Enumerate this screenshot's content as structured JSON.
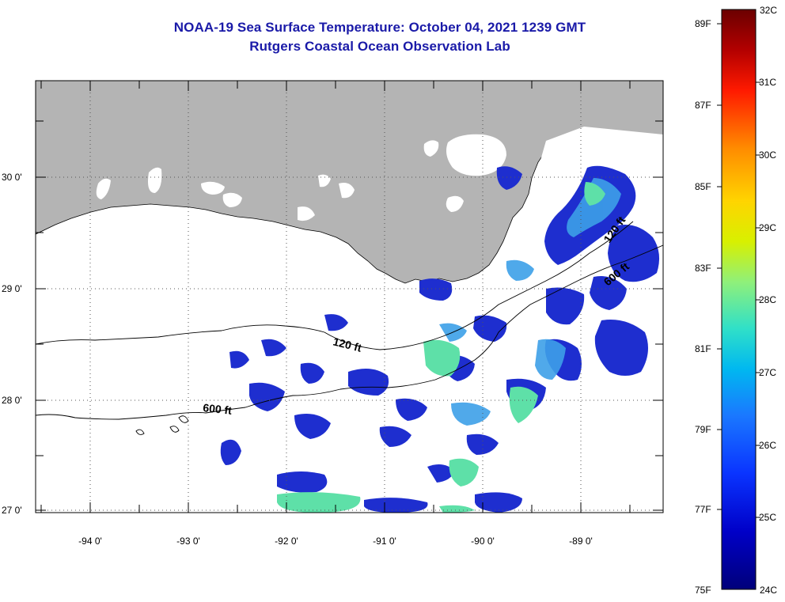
{
  "title": "NOAA-19 Sea Surface Temperature:  October 04, 2021 1239 GMT",
  "subtitle": "Rutgers Coastal Ocean Observation Lab",
  "map": {
    "lon_ticks": [
      "-94 0'",
      "-93 0'",
      "-92 0'",
      "-91 0'",
      "-90 0'",
      "-89 0'"
    ],
    "lat_ticks": [
      "30 0'",
      "29 0'",
      "28 0'",
      "27 0'"
    ],
    "isobath_labels": [
      "120 ft",
      "600 ft",
      "120 ft",
      "600 ft"
    ],
    "colors": {
      "land": "#b4b4b4",
      "grid": "#555555",
      "no_data": "#ffffff"
    }
  },
  "colorbar": {
    "celsius": [
      "32C",
      "31C",
      "30C",
      "29C",
      "28C",
      "27C",
      "26C",
      "25C",
      "24C"
    ],
    "fahrenheit": [
      "89F",
      "87F",
      "85F",
      "83F",
      "81F",
      "79F",
      "77F",
      "75F"
    ],
    "gradient": [
      "#6b0000",
      "#cc0000",
      "#ff2200",
      "#ff8a00",
      "#ffd000",
      "#e8f000",
      "#9ff06a",
      "#3fe0c0",
      "#00c8f0",
      "#1e78ff",
      "#0a2cff",
      "#0000c8",
      "#00007a"
    ]
  }
}
